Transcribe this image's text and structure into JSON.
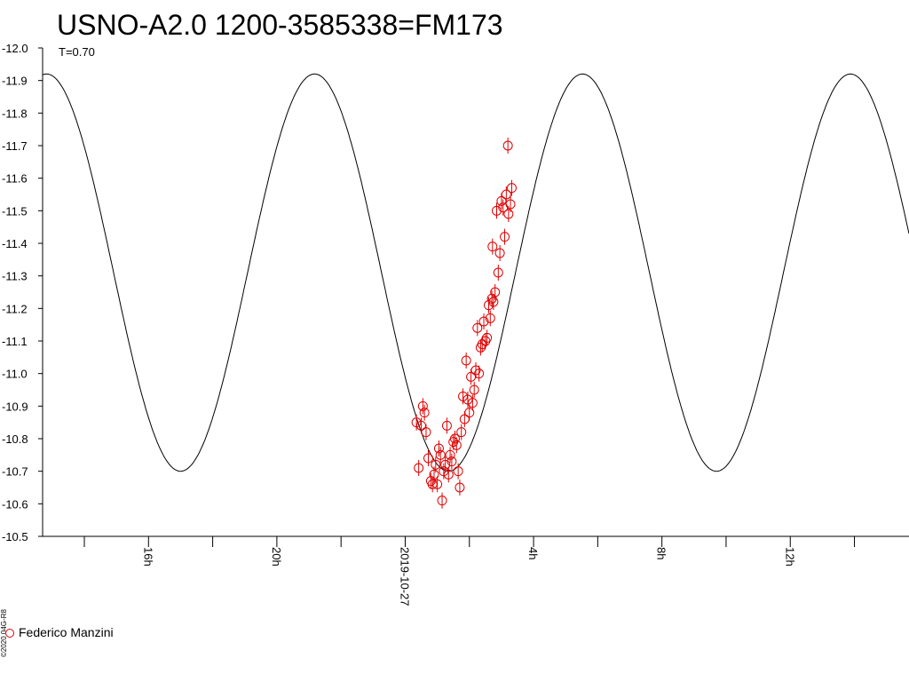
{
  "title": "USNO-A2.0 1200-3585338=FM173",
  "period_label": "T=0.70",
  "copyright": "©2020 04G-R8",
  "legend": {
    "label": "Federico Manzini",
    "color": "#e00000"
  },
  "chart_data": {
    "type": "scatter",
    "title": "USNO-A2.0 1200-3585338=FM173",
    "annotation": "T=0.70",
    "ylabel": "",
    "xlabel": "",
    "ylim": [
      -12.0,
      -10.5
    ],
    "y_inverted": true,
    "y_ticks": [
      "-12.0",
      "-11.9",
      "-11.8",
      "-11.7",
      "-11.6",
      "-11.5",
      "-11.4",
      "-11.3",
      "-11.2",
      "-11.1",
      "-11.0",
      "-10.9",
      "-10.8",
      "-10.7",
      "-10.6",
      "-10.5"
    ],
    "x_unit": "hours relative to 2019-10-27 00:00",
    "xlim": [
      -11.3,
      15.7
    ],
    "x_ticks": [
      {
        "value": -8,
        "label": "16h"
      },
      {
        "value": -4,
        "label": "20h"
      },
      {
        "value": 0,
        "label": "2019-10-27"
      },
      {
        "value": 4,
        "label": "4h"
      },
      {
        "value": 8,
        "label": "8h"
      },
      {
        "value": 12,
        "label": "12h"
      }
    ],
    "model_curve": {
      "period_hours": 8.35,
      "mean_mag": -11.31,
      "amplitude_mag": 0.61,
      "min_mag_epoch_hour": 1.35,
      "color": "#000000"
    },
    "series": [
      {
        "name": "Federico Manzini",
        "color": "#e00000",
        "points": [
          [
            0.35,
            -10.85
          ],
          [
            0.42,
            -10.71
          ],
          [
            0.5,
            -10.84
          ],
          [
            0.55,
            -10.9
          ],
          [
            0.6,
            -10.88
          ],
          [
            0.65,
            -10.82
          ],
          [
            0.72,
            -10.74
          ],
          [
            0.8,
            -10.67
          ],
          [
            0.85,
            -10.66
          ],
          [
            0.9,
            -10.69
          ],
          [
            0.95,
            -10.72
          ],
          [
            1.0,
            -10.66
          ],
          [
            1.05,
            -10.77
          ],
          [
            1.1,
            -10.75
          ],
          [
            1.15,
            -10.61
          ],
          [
            1.2,
            -10.7
          ],
          [
            1.25,
            -10.72
          ],
          [
            1.3,
            -10.84
          ],
          [
            1.35,
            -10.69
          ],
          [
            1.4,
            -10.75
          ],
          [
            1.45,
            -10.73
          ],
          [
            1.5,
            -10.79
          ],
          [
            1.55,
            -10.8
          ],
          [
            1.6,
            -10.78
          ],
          [
            1.65,
            -10.7
          ],
          [
            1.7,
            -10.65
          ],
          [
            1.75,
            -10.82
          ],
          [
            1.8,
            -10.93
          ],
          [
            1.85,
            -10.86
          ],
          [
            1.9,
            -11.04
          ],
          [
            1.95,
            -10.92
          ],
          [
            2.0,
            -10.88
          ],
          [
            2.05,
            -10.99
          ],
          [
            2.1,
            -10.91
          ],
          [
            2.15,
            -10.95
          ],
          [
            2.2,
            -11.01
          ],
          [
            2.25,
            -11.14
          ],
          [
            2.3,
            -11.0
          ],
          [
            2.35,
            -11.08
          ],
          [
            2.4,
            -11.09
          ],
          [
            2.45,
            -11.16
          ],
          [
            2.5,
            -11.1
          ],
          [
            2.55,
            -11.11
          ],
          [
            2.6,
            -11.21
          ],
          [
            2.65,
            -11.17
          ],
          [
            2.7,
            -11.23
          ],
          [
            2.72,
            -11.39
          ],
          [
            2.75,
            -11.22
          ],
          [
            2.8,
            -11.25
          ],
          [
            2.85,
            -11.5
          ],
          [
            2.9,
            -11.31
          ],
          [
            2.95,
            -11.37
          ],
          [
            3.0,
            -11.53
          ],
          [
            3.05,
            -11.51
          ],
          [
            3.1,
            -11.42
          ],
          [
            3.15,
            -11.55
          ],
          [
            3.2,
            -11.7
          ],
          [
            3.22,
            -11.49
          ],
          [
            3.28,
            -11.52
          ],
          [
            3.32,
            -11.57
          ]
        ]
      }
    ]
  }
}
